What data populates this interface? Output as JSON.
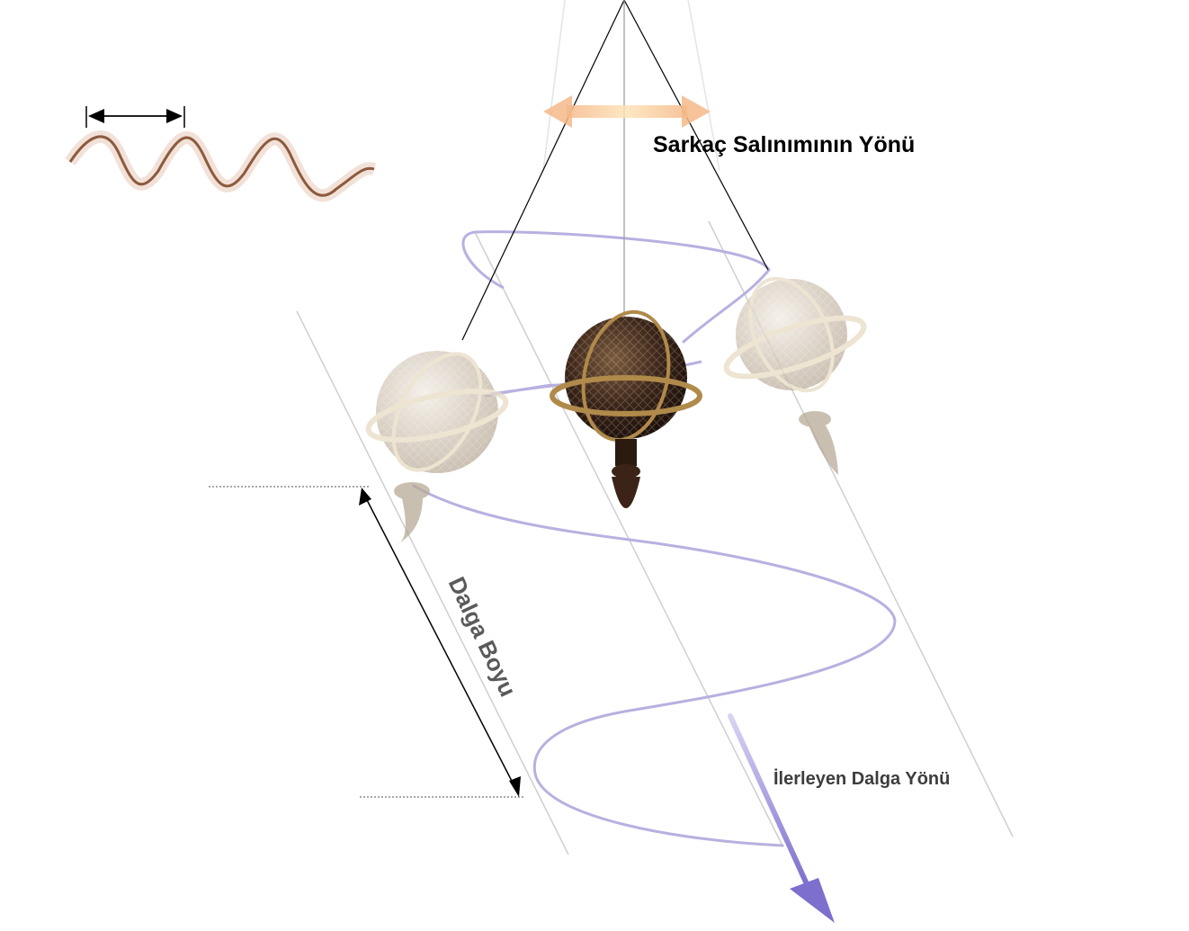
{
  "labels": {
    "swing_direction": "Sarkaç Salınımının Yönü",
    "traveling_wave_direction": "İlerleyen Dalga Yönü",
    "wavelength": "Dalga Boyu"
  },
  "colors": {
    "helix": "#b7b1e0",
    "wave_arrow": "#8a7fd6",
    "swing_arrow": "#f5c38e",
    "pendulum_dark": "#3b2417",
    "pendulum_brass": "#b08a4a",
    "pendulum_ghost": "#cfc3b3",
    "guide_lines": "#c8c8c8",
    "string": "#000000",
    "sine_wave": "#8c5a3c"
  },
  "icons": {
    "pendulum": "pendulum-bob-icon",
    "arrow": "arrow-icon"
  }
}
